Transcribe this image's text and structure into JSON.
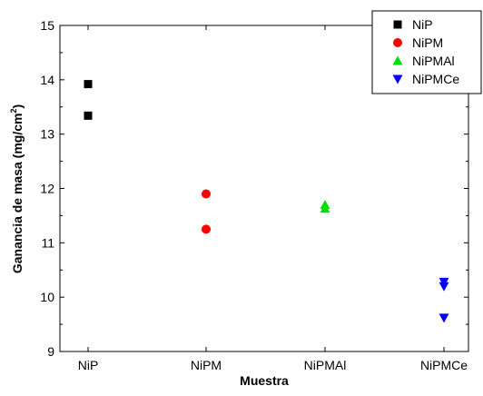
{
  "chart_data": {
    "type": "scatter",
    "categories": [
      "NiP",
      "NiPM",
      "NiPMAl",
      "NiPMCe"
    ],
    "xlabel": "Muestra",
    "ylabel_main": "Ganancia de masa (mg/cm",
    "ylabel_sup": "2",
    "ylabel_close": ")",
    "ylim": [
      9,
      15
    ],
    "yticks": [
      "9",
      "10",
      "11",
      "12",
      "13",
      "14",
      "15"
    ],
    "grid": false,
    "legend_position": "top-right",
    "series": [
      {
        "name": "NiP",
        "marker": "square",
        "color": "#000000",
        "category": "NiP",
        "values": [
          13.92,
          13.34
        ]
      },
      {
        "name": "NiPM",
        "marker": "circle",
        "color": "#ff0000",
        "category": "NiPM",
        "values": [
          11.9,
          11.25
        ]
      },
      {
        "name": "NiPMAl",
        "marker": "triangle-up",
        "color": "#00e000",
        "category": "NiPMAl",
        "values": [
          11.7,
          11.63
        ]
      },
      {
        "name": "NiPMCe",
        "marker": "triangle-down",
        "color": "#0000ff",
        "category": "NiPMCe",
        "values": [
          10.28,
          10.2,
          9.62
        ]
      }
    ]
  }
}
